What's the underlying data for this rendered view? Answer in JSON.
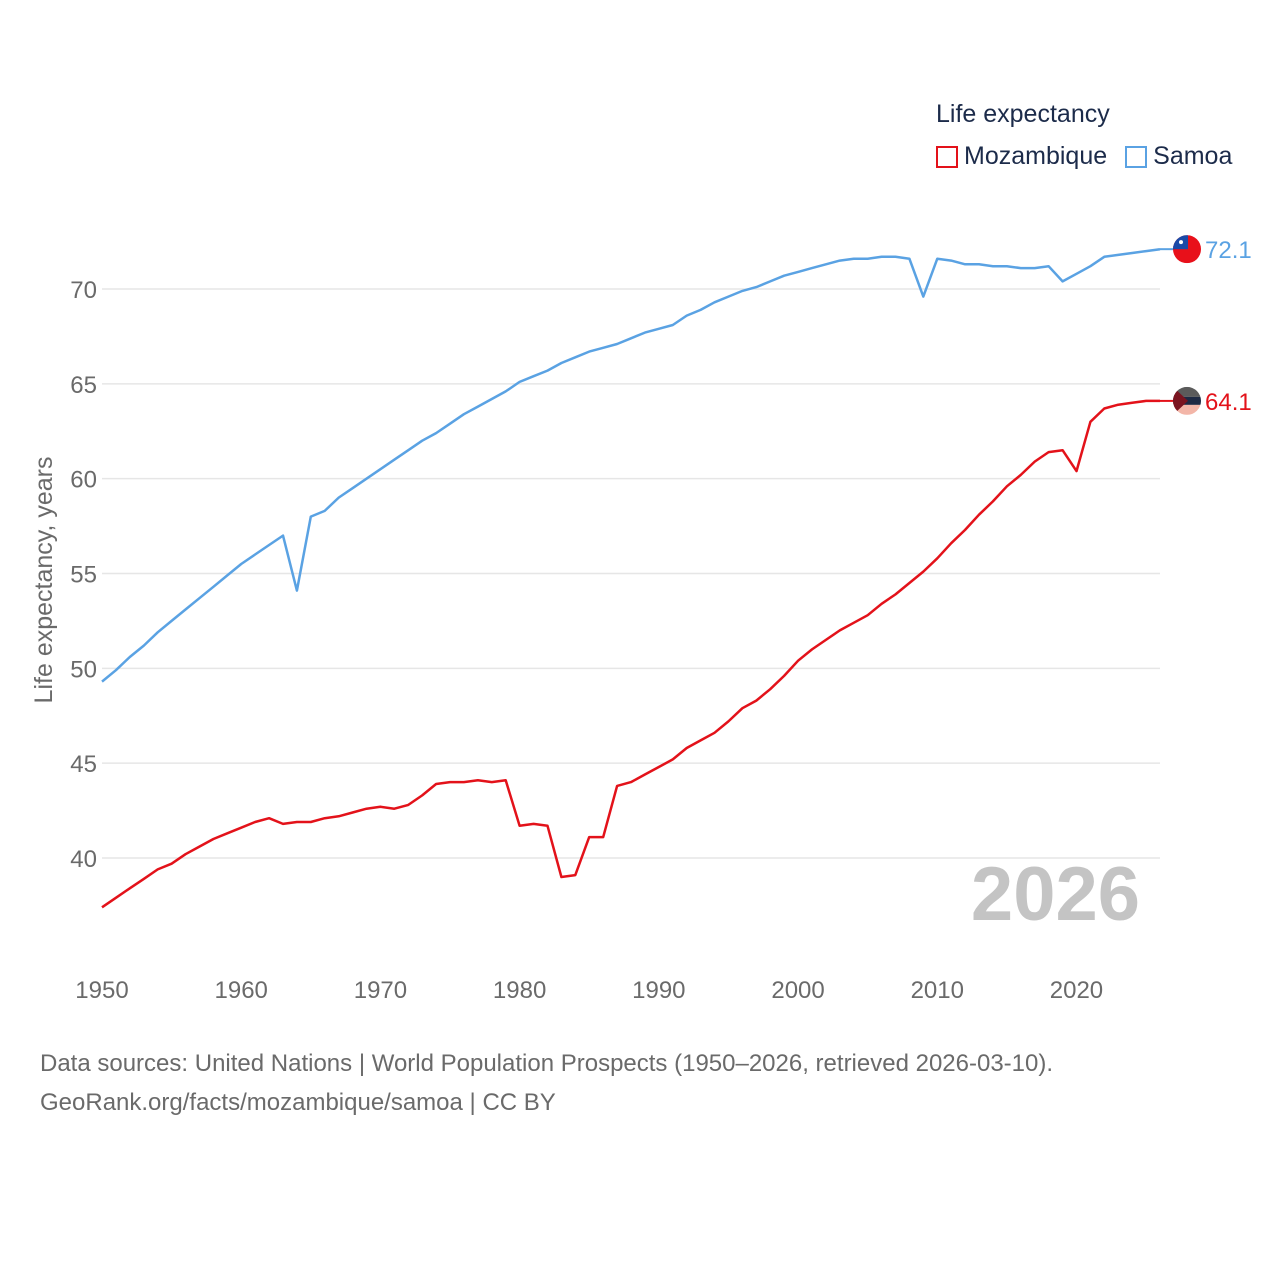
{
  "legend": {
    "title": "Life expectancy",
    "items": [
      {
        "name": "Mozambique",
        "color": "#e3121a"
      },
      {
        "name": "Samoa",
        "color": "#5aa2e3"
      }
    ]
  },
  "footer": {
    "line1": "Data sources: United Nations | World Population Prospects (1950–2026, retrieved 2026-03-10).",
    "line2": "GeoRank.org/facts/mozambique/samoa | CC BY"
  },
  "chart_data": {
    "type": "line",
    "title": "Life expectancy",
    "xlabel": "",
    "ylabel": "Life expectancy, years",
    "year_label": "2026",
    "xlim": [
      1950,
      2026
    ],
    "ylim": [
      35,
      75
    ],
    "x_ticks": [
      1950,
      1960,
      1970,
      1980,
      1990,
      2000,
      2010,
      2020
    ],
    "y_ticks": [
      40,
      45,
      50,
      55,
      60,
      65,
      70
    ],
    "grid": true,
    "x": [
      1950,
      1951,
      1952,
      1953,
      1954,
      1955,
      1956,
      1957,
      1958,
      1959,
      1960,
      1961,
      1962,
      1963,
      1964,
      1965,
      1966,
      1967,
      1968,
      1969,
      1970,
      1971,
      1972,
      1973,
      1974,
      1975,
      1976,
      1977,
      1978,
      1979,
      1980,
      1981,
      1982,
      1983,
      1984,
      1985,
      1986,
      1987,
      1988,
      1989,
      1990,
      1991,
      1992,
      1993,
      1994,
      1995,
      1996,
      1997,
      1998,
      1999,
      2000,
      2001,
      2002,
      2003,
      2004,
      2005,
      2006,
      2007,
      2008,
      2009,
      2010,
      2011,
      2012,
      2013,
      2014,
      2015,
      2016,
      2017,
      2018,
      2019,
      2020,
      2021,
      2022,
      2023,
      2024,
      2025,
      2026
    ],
    "series": [
      {
        "name": "Mozambique",
        "color": "#e3121a",
        "end_label": "64.1",
        "values": [
          37.4,
          37.9,
          38.4,
          38.9,
          39.4,
          39.7,
          40.2,
          40.6,
          41.0,
          41.3,
          41.6,
          41.9,
          42.1,
          41.8,
          41.9,
          41.9,
          42.1,
          42.2,
          42.4,
          42.6,
          42.7,
          42.6,
          42.8,
          43.3,
          43.9,
          44.0,
          44.0,
          44.1,
          44.0,
          44.1,
          41.7,
          41.8,
          41.7,
          39.0,
          39.1,
          41.1,
          41.1,
          43.8,
          44.0,
          44.4,
          44.8,
          45.2,
          45.8,
          46.2,
          46.6,
          47.2,
          47.9,
          48.3,
          48.9,
          49.6,
          50.4,
          51.0,
          51.5,
          52.0,
          52.4,
          52.8,
          53.4,
          53.9,
          54.5,
          55.1,
          55.8,
          56.6,
          57.3,
          58.1,
          58.8,
          59.6,
          60.2,
          60.9,
          61.4,
          61.5,
          60.4,
          63.0,
          63.7,
          63.9,
          64.0,
          64.1,
          64.1
        ]
      },
      {
        "name": "Samoa",
        "color": "#5aa2e3",
        "end_label": "72.1",
        "values": [
          49.3,
          49.9,
          50.6,
          51.2,
          51.9,
          52.5,
          53.1,
          53.7,
          54.3,
          54.9,
          55.5,
          56.0,
          56.5,
          57.0,
          54.1,
          58.0,
          58.3,
          59.0,
          59.5,
          60.0,
          60.5,
          61.0,
          61.5,
          62.0,
          62.4,
          62.9,
          63.4,
          63.8,
          64.2,
          64.6,
          65.1,
          65.4,
          65.7,
          66.1,
          66.4,
          66.7,
          66.9,
          67.1,
          67.4,
          67.7,
          67.9,
          68.1,
          68.6,
          68.9,
          69.3,
          69.6,
          69.9,
          70.1,
          70.4,
          70.7,
          70.9,
          71.1,
          71.3,
          71.5,
          71.6,
          71.6,
          71.7,
          71.7,
          71.6,
          69.6,
          71.6,
          71.5,
          71.3,
          71.3,
          71.2,
          71.2,
          71.1,
          71.1,
          71.2,
          70.4,
          70.8,
          71.2,
          71.7,
          71.8,
          71.9,
          72.0,
          72.1
        ]
      }
    ]
  }
}
